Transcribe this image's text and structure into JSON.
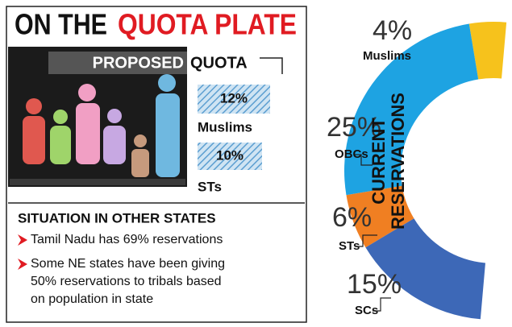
{
  "header": {
    "title_part_1": "ON THE",
    "title_part_2": "QUOTA PLATE"
  },
  "proposed": {
    "heading_part_1": "PROPOSED",
    "heading_part_2": "QUOTA",
    "items": [
      {
        "value_label": "12%",
        "name": "Muslims"
      },
      {
        "value_label": "10%",
        "name": "STs"
      }
    ]
  },
  "situation": {
    "heading": "SITUATION IN OTHER STATES",
    "bullets": [
      [
        "Tamil Nadu has 69% reservations"
      ],
      [
        "Some NE states have been giving",
        "50% reservations to tribals based",
        "on population in state"
      ]
    ]
  },
  "chart_data": {
    "type": "donut",
    "title": "CURRENT RESERVATIONS",
    "categories": [
      "Muslims",
      "OBCs",
      "STs",
      "SCs"
    ],
    "values": [
      4,
      25,
      6,
      15
    ],
    "value_labels": [
      "4%",
      "25%",
      "6%",
      "15%"
    ],
    "colors": [
      "#f6c21c",
      "#1ea3e2",
      "#f07f22",
      "#3d68b7"
    ]
  }
}
